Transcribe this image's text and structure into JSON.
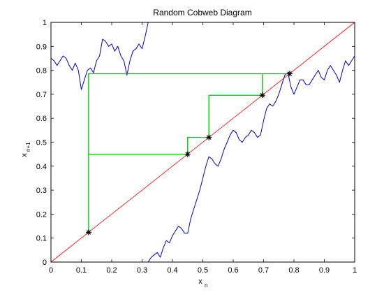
{
  "chart_data": {
    "type": "line",
    "title": "Random Cobweb Diagram",
    "xlabel_main": "x",
    "xlabel_sub": "n",
    "ylabel_main": "x",
    "ylabel_sub": "n+1",
    "xlim": [
      0,
      1
    ],
    "ylim": [
      0,
      1
    ],
    "grid": false,
    "legend": "none",
    "x_ticks": [
      0,
      0.1,
      0.2,
      0.3,
      0.4,
      0.5,
      0.6,
      0.7,
      0.8,
      0.9,
      1
    ],
    "x_tick_labels": [
      "0",
      "0.1",
      "0.2",
      "0.3",
      "0.4",
      "0.5",
      "0.6",
      "0.7",
      "0.8",
      "0.9",
      "1"
    ],
    "y_ticks": [
      0,
      0.1,
      0.2,
      0.3,
      0.4,
      0.5,
      0.6,
      0.7,
      0.8,
      0.9,
      1
    ],
    "y_tick_labels": [
      "0",
      "0.1",
      "0.2",
      "0.3",
      "0.4",
      "0.5",
      "0.6",
      "0.7",
      "0.8",
      "0.9",
      "1"
    ],
    "series": [
      {
        "kind": "map_curve",
        "color": "#0000cc",
        "x": [
          0.0,
          0.01,
          0.02,
          0.03,
          0.04,
          0.05,
          0.06,
          0.07,
          0.08,
          0.09,
          0.1,
          0.11,
          0.12,
          0.13,
          0.14,
          0.15,
          0.16,
          0.17,
          0.18,
          0.19,
          0.2,
          0.21,
          0.22,
          0.23,
          0.24,
          0.25,
          0.26,
          0.27,
          0.28,
          0.29,
          0.3,
          0.31,
          0.32
        ],
        "y": [
          0.85,
          0.84,
          0.82,
          0.84,
          0.86,
          0.85,
          0.82,
          0.8,
          0.83,
          0.8,
          0.72,
          0.76,
          0.8,
          0.81,
          0.79,
          0.84,
          0.86,
          0.93,
          0.92,
          0.9,
          0.91,
          0.88,
          0.9,
          0.86,
          0.84,
          0.78,
          0.84,
          0.88,
          0.89,
          0.91,
          0.89,
          0.94,
          1.0
        ]
      },
      {
        "kind": "map_curve",
        "color": "#0000cc",
        "x": [
          0.32,
          0.33,
          0.34,
          0.35,
          0.36,
          0.37,
          0.38,
          0.39,
          0.4,
          0.41,
          0.42,
          0.43,
          0.44,
          0.45,
          0.46,
          0.47,
          0.48,
          0.49,
          0.5,
          0.51,
          0.52,
          0.53,
          0.54,
          0.55,
          0.56,
          0.57,
          0.58,
          0.59,
          0.6,
          0.61,
          0.62,
          0.63,
          0.64,
          0.65,
          0.66,
          0.67,
          0.68,
          0.69,
          0.7,
          0.71,
          0.72,
          0.73,
          0.74,
          0.75,
          0.76,
          0.77,
          0.78,
          0.79,
          0.8,
          0.81,
          0.82,
          0.83,
          0.84,
          0.85,
          0.86,
          0.87,
          0.88,
          0.89,
          0.9,
          0.91,
          0.92,
          0.93,
          0.94,
          0.95,
          0.96,
          0.97,
          0.98,
          0.99,
          1.0
        ],
        "y": [
          0.0,
          0.02,
          0.03,
          0.04,
          0.02,
          0.06,
          0.09,
          0.08,
          0.11,
          0.13,
          0.15,
          0.14,
          0.12,
          0.12,
          0.18,
          0.22,
          0.26,
          0.3,
          0.35,
          0.4,
          0.44,
          0.43,
          0.41,
          0.4,
          0.43,
          0.47,
          0.5,
          0.53,
          0.55,
          0.54,
          0.51,
          0.5,
          0.52,
          0.53,
          0.55,
          0.54,
          0.52,
          0.53,
          0.59,
          0.64,
          0.66,
          0.65,
          0.67,
          0.7,
          0.74,
          0.78,
          0.79,
          0.73,
          0.7,
          0.73,
          0.76,
          0.76,
          0.74,
          0.74,
          0.76,
          0.78,
          0.8,
          0.77,
          0.76,
          0.8,
          0.82,
          0.8,
          0.78,
          0.75,
          0.8,
          0.84,
          0.82,
          0.84,
          0.86
        ]
      },
      {
        "kind": "identity_line",
        "color": "#ff0000",
        "x": [
          0,
          1
        ],
        "y": [
          0,
          1
        ]
      },
      {
        "kind": "cobweb",
        "color": "#00cc00",
        "x": [
          0.124,
          0.124,
          0.45,
          0.45,
          0.52,
          0.52,
          0.696,
          0.696,
          0.786,
          0.786,
          0.124,
          0.124
        ],
        "y": [
          0.124,
          0.45,
          0.45,
          0.52,
          0.52,
          0.696,
          0.696,
          0.786,
          0.786,
          0.786,
          0.786,
          0.124
        ]
      }
    ],
    "points": {
      "x": [
        0.124,
        0.45,
        0.52,
        0.696,
        0.786
      ],
      "y": [
        0.124,
        0.45,
        0.52,
        0.696,
        0.786
      ],
      "marker": "asterisk",
      "color": "#000000"
    }
  }
}
